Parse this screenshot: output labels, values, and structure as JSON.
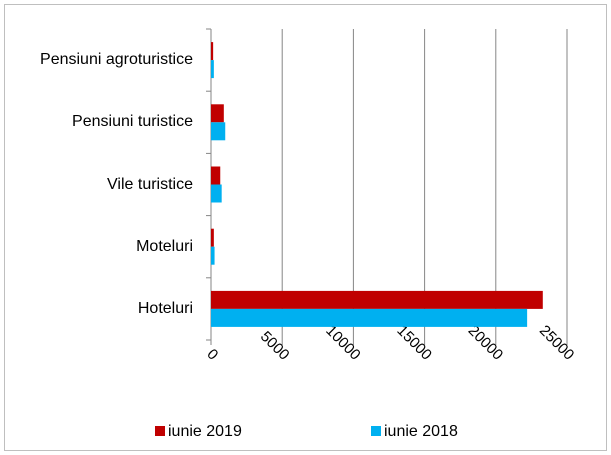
{
  "chart_data": {
    "type": "hbar",
    "categories": [
      "Pensiuni agroturistice",
      "Pensiuni turistice",
      "Vile turistice",
      "Moteluri",
      "Hoteluri"
    ],
    "series": [
      {
        "name": "iunie 2019",
        "color": "#c00000",
        "values": [
          150,
          900,
          650,
          200,
          23300
        ]
      },
      {
        "name": "iunie 2018",
        "color": "#00b0f0",
        "values": [
          200,
          1000,
          750,
          250,
          22200
        ]
      }
    ],
    "xlim": [
      0,
      25000
    ],
    "xticks": [
      0,
      5000,
      10000,
      15000,
      20000,
      25000
    ],
    "grid": true,
    "legend": "bottom"
  }
}
